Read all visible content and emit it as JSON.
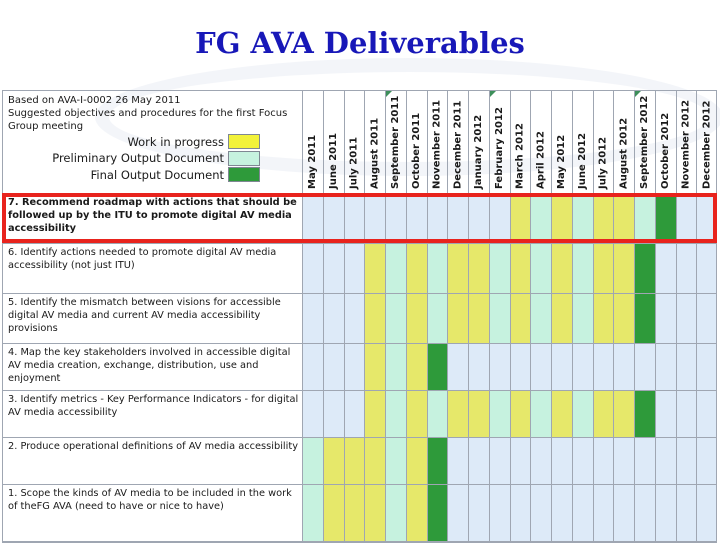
{
  "title": "FG AVA Deliverables",
  "header_text": "Based on AVA-I-0002 26 May 2011\nSuggested objectives and procedures for the first Focus Group meeting",
  "legend": [
    {
      "label": "Work in progress",
      "color": "#f2f23a"
    },
    {
      "label": "Preliminary Output Document",
      "color": "#c6f2df"
    },
    {
      "label": "Final Output Document",
      "color": "#2e9a3a"
    }
  ],
  "months": [
    "May 2011",
    "June 2011",
    "July 2011",
    "August 2011",
    "September 2011",
    "October 2011",
    "November 2011",
    "December 2011",
    "January 2012",
    "February 2012",
    "March 2012",
    "April 2012",
    "May 2012",
    "June 2012",
    "July 2012",
    "August 2012",
    "September 2012",
    "October 2012",
    "November 2012",
    "December 2012"
  ],
  "colors": {
    "w": "#e6e86a",
    "p": "#c6f2df",
    "f": "#2e9a3a",
    "e": "#ddeaf8",
    "highlight": "#e8231d"
  },
  "tasks": [
    {
      "label": "7. Recommend roadmap with actions that should be followed up by the ITU to promote digital AV media accessibility",
      "bold": true,
      "status": [
        "e",
        "e",
        "e",
        "e",
        "e",
        "e",
        "e",
        "e",
        "e",
        "e",
        "w",
        "p",
        "w",
        "p",
        "w",
        "w",
        "p",
        "f",
        "e",
        "e"
      ]
    },
    {
      "label": "6. Identify actions needed to promote digital AV media accessibility (not just ITU)",
      "bold": false,
      "status": [
        "e",
        "e",
        "e",
        "w",
        "p",
        "w",
        "p",
        "w",
        "w",
        "p",
        "w",
        "p",
        "w",
        "p",
        "w",
        "w",
        "f",
        "e",
        "e",
        "e"
      ]
    },
    {
      "label": "5. Identify the mismatch between visions for accessible digital AV media and current AV media accessibility provisions",
      "bold": false,
      "status": [
        "e",
        "e",
        "e",
        "w",
        "p",
        "w",
        "p",
        "w",
        "w",
        "p",
        "w",
        "p",
        "w",
        "p",
        "w",
        "w",
        "f",
        "e",
        "e",
        "e"
      ]
    },
    {
      "label": "4. Map the key stakeholders involved in accessible digital AV media creation, exchange, distribution, use and enjoyment",
      "bold": false,
      "status": [
        "e",
        "e",
        "e",
        "w",
        "p",
        "w",
        "f",
        "e",
        "e",
        "e",
        "e",
        "e",
        "e",
        "e",
        "e",
        "e",
        "e",
        "e",
        "e",
        "e"
      ]
    },
    {
      "label": "3. Identify metrics - Key Performance Indicators - for digital AV media accessibility",
      "bold": false,
      "status": [
        "e",
        "e",
        "e",
        "w",
        "p",
        "w",
        "p",
        "w",
        "w",
        "p",
        "w",
        "p",
        "w",
        "p",
        "w",
        "w",
        "f",
        "e",
        "e",
        "e"
      ]
    },
    {
      "label": "2. Produce operational definitions of AV media accessibility",
      "bold": false,
      "status": [
        "p",
        "w",
        "w",
        "w",
        "p",
        "w",
        "f",
        "e",
        "e",
        "e",
        "e",
        "e",
        "e",
        "e",
        "e",
        "e",
        "e",
        "e",
        "e",
        "e"
      ]
    },
    {
      "label": "1. Scope the kinds of AV media to be included in the work of theFG AVA (need to have or nice to have)",
      "bold": false,
      "status": [
        "p",
        "w",
        "w",
        "w",
        "p",
        "w",
        "f",
        "e",
        "e",
        "e",
        "e",
        "e",
        "e",
        "e",
        "e",
        "e",
        "e",
        "e",
        "e",
        "e"
      ]
    }
  ],
  "ticks_after_months": [
    "August 2011",
    "January 2012",
    "August 2012"
  ]
}
